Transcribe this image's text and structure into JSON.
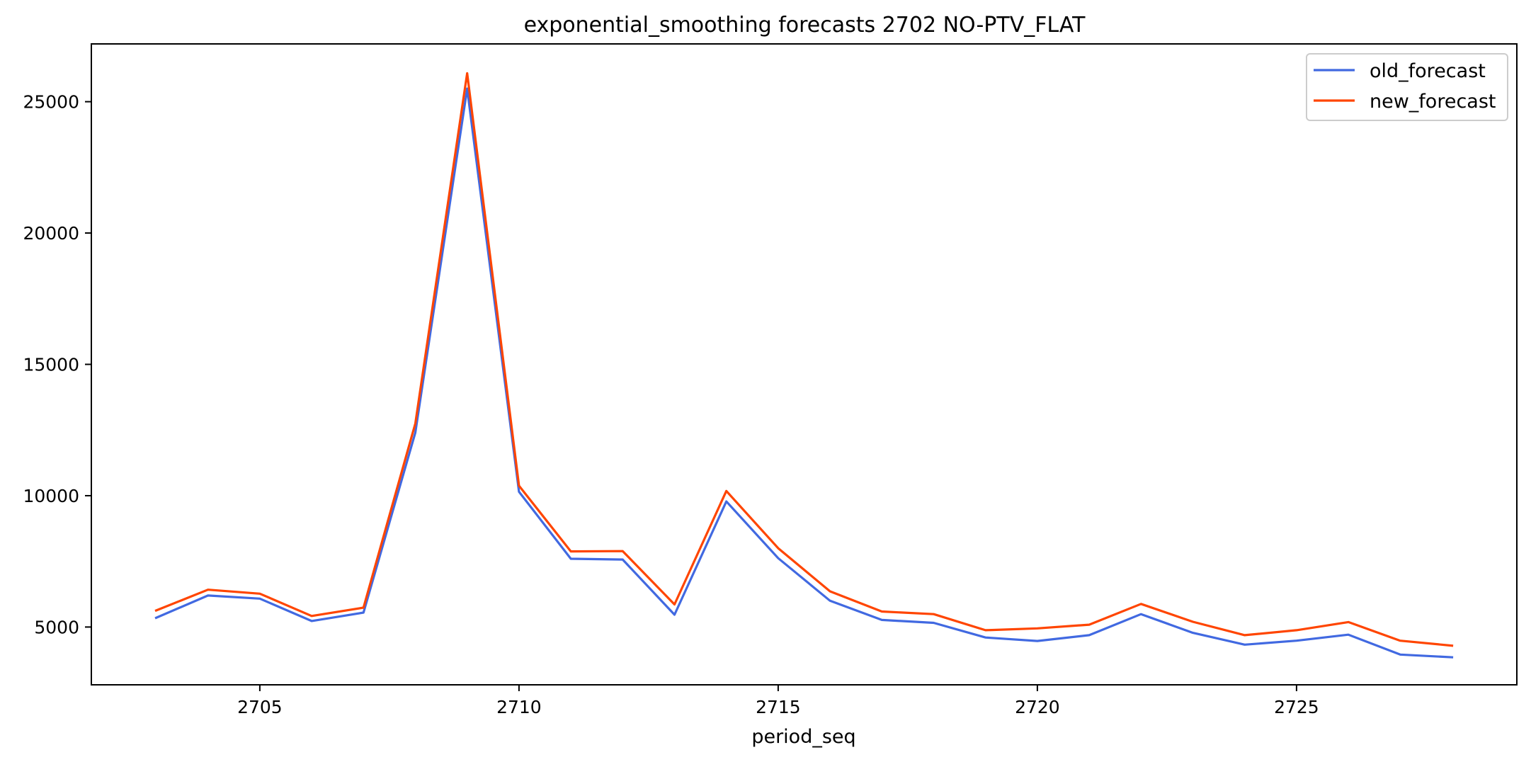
{
  "chart_data": {
    "type": "line",
    "title": "exponential_smoothing forecasts 2702 NO-PTV_FLAT",
    "xlabel": "period_seq",
    "ylabel": "",
    "xlim": [
      2701.75,
      2729.25
    ],
    "ylim": [
      2800,
      27200
    ],
    "x_ticks": [
      2705,
      2710,
      2715,
      2720,
      2725
    ],
    "y_ticks": [
      5000,
      10000,
      15000,
      20000,
      25000
    ],
    "grid": false,
    "legend_position": "top-right",
    "x": [
      2703,
      2704,
      2705,
      2706,
      2707,
      2708,
      2709,
      2710,
      2711,
      2712,
      2713,
      2714,
      2715,
      2716,
      2717,
      2718,
      2719,
      2720,
      2721,
      2722,
      2723,
      2724,
      2725,
      2726,
      2727,
      2728
    ],
    "series": [
      {
        "name": "old_forecast",
        "color": "#4169e1",
        "values": [
          5350,
          6200,
          6080,
          5230,
          5550,
          12400,
          25500,
          10150,
          7600,
          7570,
          5470,
          9780,
          7620,
          6000,
          5270,
          5160,
          4600,
          4470,
          4690,
          5490,
          4780,
          4330,
          4480,
          4710,
          3950,
          3850
        ]
      },
      {
        "name": "new_forecast",
        "color": "#ff4500",
        "values": [
          5630,
          6420,
          6270,
          5420,
          5740,
          12750,
          26080,
          10380,
          7880,
          7890,
          5860,
          10180,
          8000,
          6360,
          5590,
          5490,
          4880,
          4950,
          5090,
          5880,
          5200,
          4690,
          4880,
          5190,
          4480,
          4290
        ]
      }
    ]
  }
}
